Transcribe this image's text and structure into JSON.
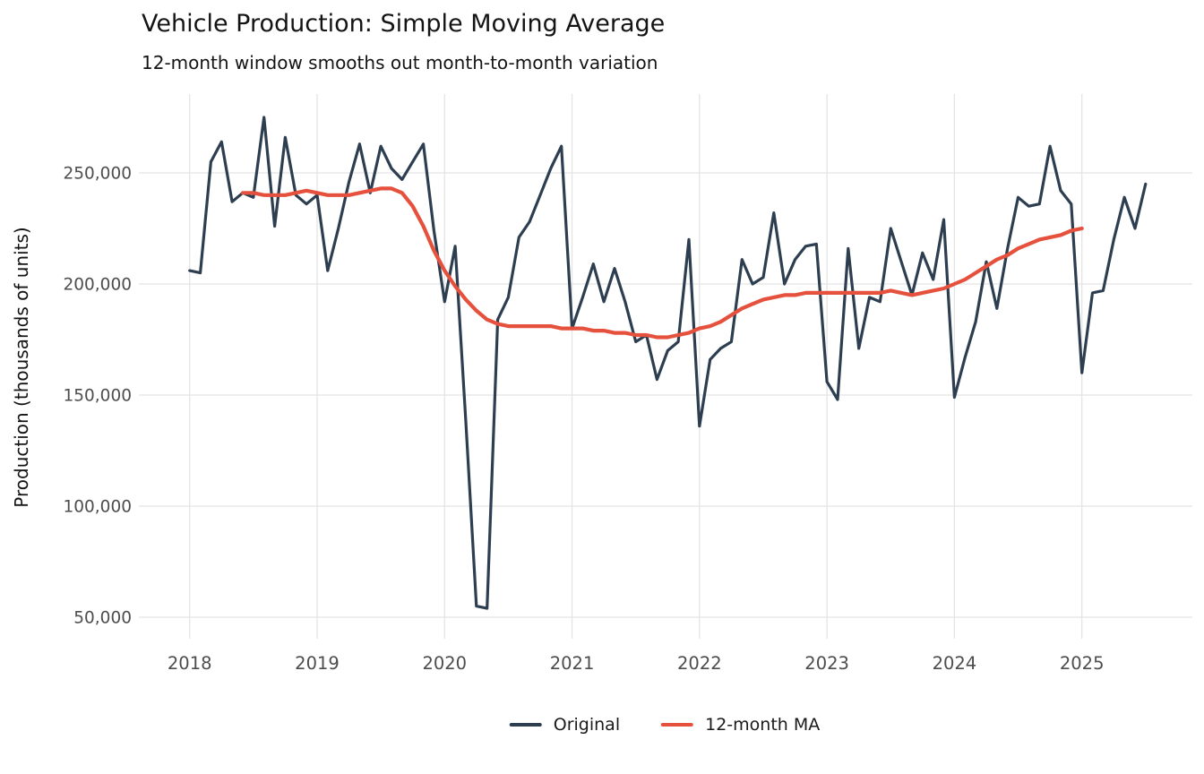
{
  "chart_data": {
    "type": "line",
    "title": "Vehicle Production: Simple Moving Average",
    "subtitle": "12-month window smooths out month-to-month variation",
    "ylabel": "Production (thousands of units)",
    "x_start_month": "2018-01",
    "x_months_per_tick": 12,
    "x_tick_labels": [
      "2018",
      "2019",
      "2020",
      "2021",
      "2022",
      "2023",
      "2024",
      "2025"
    ],
    "y_ticks": [
      50000,
      100000,
      150000,
      200000,
      250000
    ],
    "y_tick_labels": [
      "50,000",
      "100,000",
      "150,000",
      "200,000",
      "250,000"
    ],
    "ylim": [
      39500,
      285500
    ],
    "grid": true,
    "grid_color": "#e4e4e4",
    "tick_label_color": "#4d4d4d",
    "background": "#ffffff",
    "legend_position": "bottom-center",
    "series": [
      {
        "name": "Original",
        "color": "#2d3e50",
        "line_width": 3.2,
        "start_month_index": 0,
        "values": [
          206000,
          205000,
          255000,
          264000,
          237000,
          241000,
          239000,
          275000,
          226000,
          266000,
          240000,
          236000,
          240000,
          206000,
          225000,
          246000,
          263000,
          241000,
          262000,
          252000,
          247000,
          255000,
          263000,
          224000,
          192000,
          217000,
          138000,
          55000,
          54000,
          184000,
          194000,
          221000,
          228000,
          240000,
          252000,
          262000,
          180000,
          194000,
          209000,
          192000,
          207000,
          192000,
          174000,
          177000,
          157000,
          170000,
          174000,
          220000,
          136000,
          166000,
          171000,
          174000,
          211000,
          200000,
          203000,
          232000,
          200000,
          211000,
          217000,
          218000,
          156000,
          148000,
          216000,
          171000,
          194000,
          192000,
          225000,
          210000,
          195000,
          214000,
          202000,
          229000,
          149000,
          167000,
          183000,
          210000,
          189000,
          216000,
          239000,
          235000,
          236000,
          262000,
          242000,
          236000,
          160000,
          196000,
          197000,
          220000,
          239000,
          225000,
          245000
        ]
      },
      {
        "name": "12-month MA",
        "color": "#e6513d",
        "line_width": 4.2,
        "start_month_index": 5,
        "values": [
          241000,
          241000,
          240000,
          240000,
          240000,
          241000,
          242000,
          241000,
          240000,
          240000,
          240000,
          241000,
          242000,
          243000,
          243000,
          241000,
          235000,
          226000,
          215000,
          206000,
          199000,
          193000,
          188000,
          184000,
          182000,
          181000,
          181000,
          181000,
          181000,
          181000,
          180000,
          180000,
          180000,
          179000,
          179000,
          178000,
          178000,
          177000,
          177000,
          176000,
          176000,
          177000,
          178000,
          180000,
          181000,
          183000,
          186000,
          189000,
          191000,
          193000,
          194000,
          195000,
          195000,
          196000,
          196000,
          196000,
          196000,
          196000,
          196000,
          196000,
          196000,
          197000,
          196000,
          195000,
          196000,
          197000,
          198000,
          200000,
          202000,
          205000,
          208000,
          211000,
          213000,
          216000,
          218000,
          220000,
          221000,
          222000,
          224000,
          225000
        ]
      }
    ]
  }
}
